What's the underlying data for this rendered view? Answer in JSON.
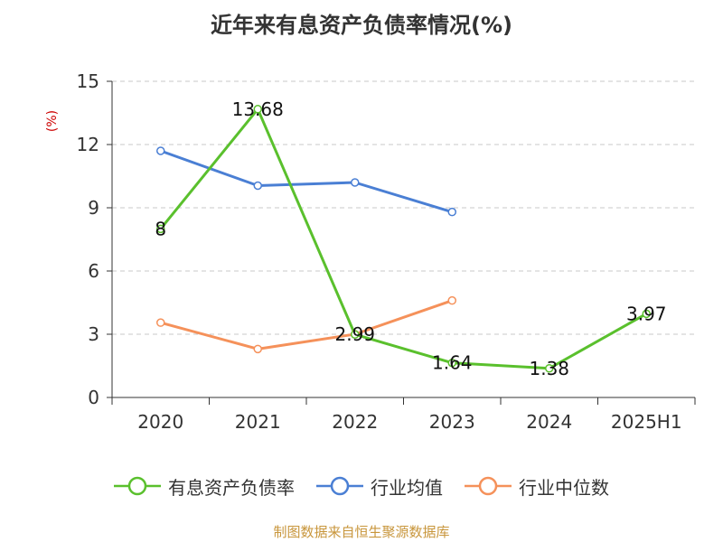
{
  "chart_data": {
    "type": "line",
    "title": "近年来有息资产负债率情况(%)",
    "ylabel": "(%)",
    "xlabel": "",
    "categories": [
      "2020",
      "2021",
      "2022",
      "2023",
      "2024",
      "2025H1"
    ],
    "ylim": [
      0,
      15
    ],
    "yticks": [
      0,
      3,
      6,
      9,
      12,
      15
    ],
    "grid": true,
    "legend_position": "bottom",
    "series": [
      {
        "name": "有息资产负债率",
        "color": "#5ac02d",
        "values": [
          8,
          13.68,
          2.99,
          1.64,
          1.38,
          3.97
        ],
        "labels": [
          "8",
          "13.68",
          "2.99",
          "1.64",
          "1.38",
          "3.97"
        ],
        "show_labels": true
      },
      {
        "name": "行业均值",
        "color": "#4a7fd4",
        "values": [
          11.7,
          10.05,
          10.2,
          8.8,
          null,
          null
        ],
        "show_labels": false
      },
      {
        "name": "行业中位数",
        "color": "#f5915a",
        "values": [
          3.55,
          2.3,
          3.0,
          4.6,
          null,
          null
        ],
        "show_labels": false
      }
    ]
  },
  "source": "制图数据来自恒生聚源数据库"
}
